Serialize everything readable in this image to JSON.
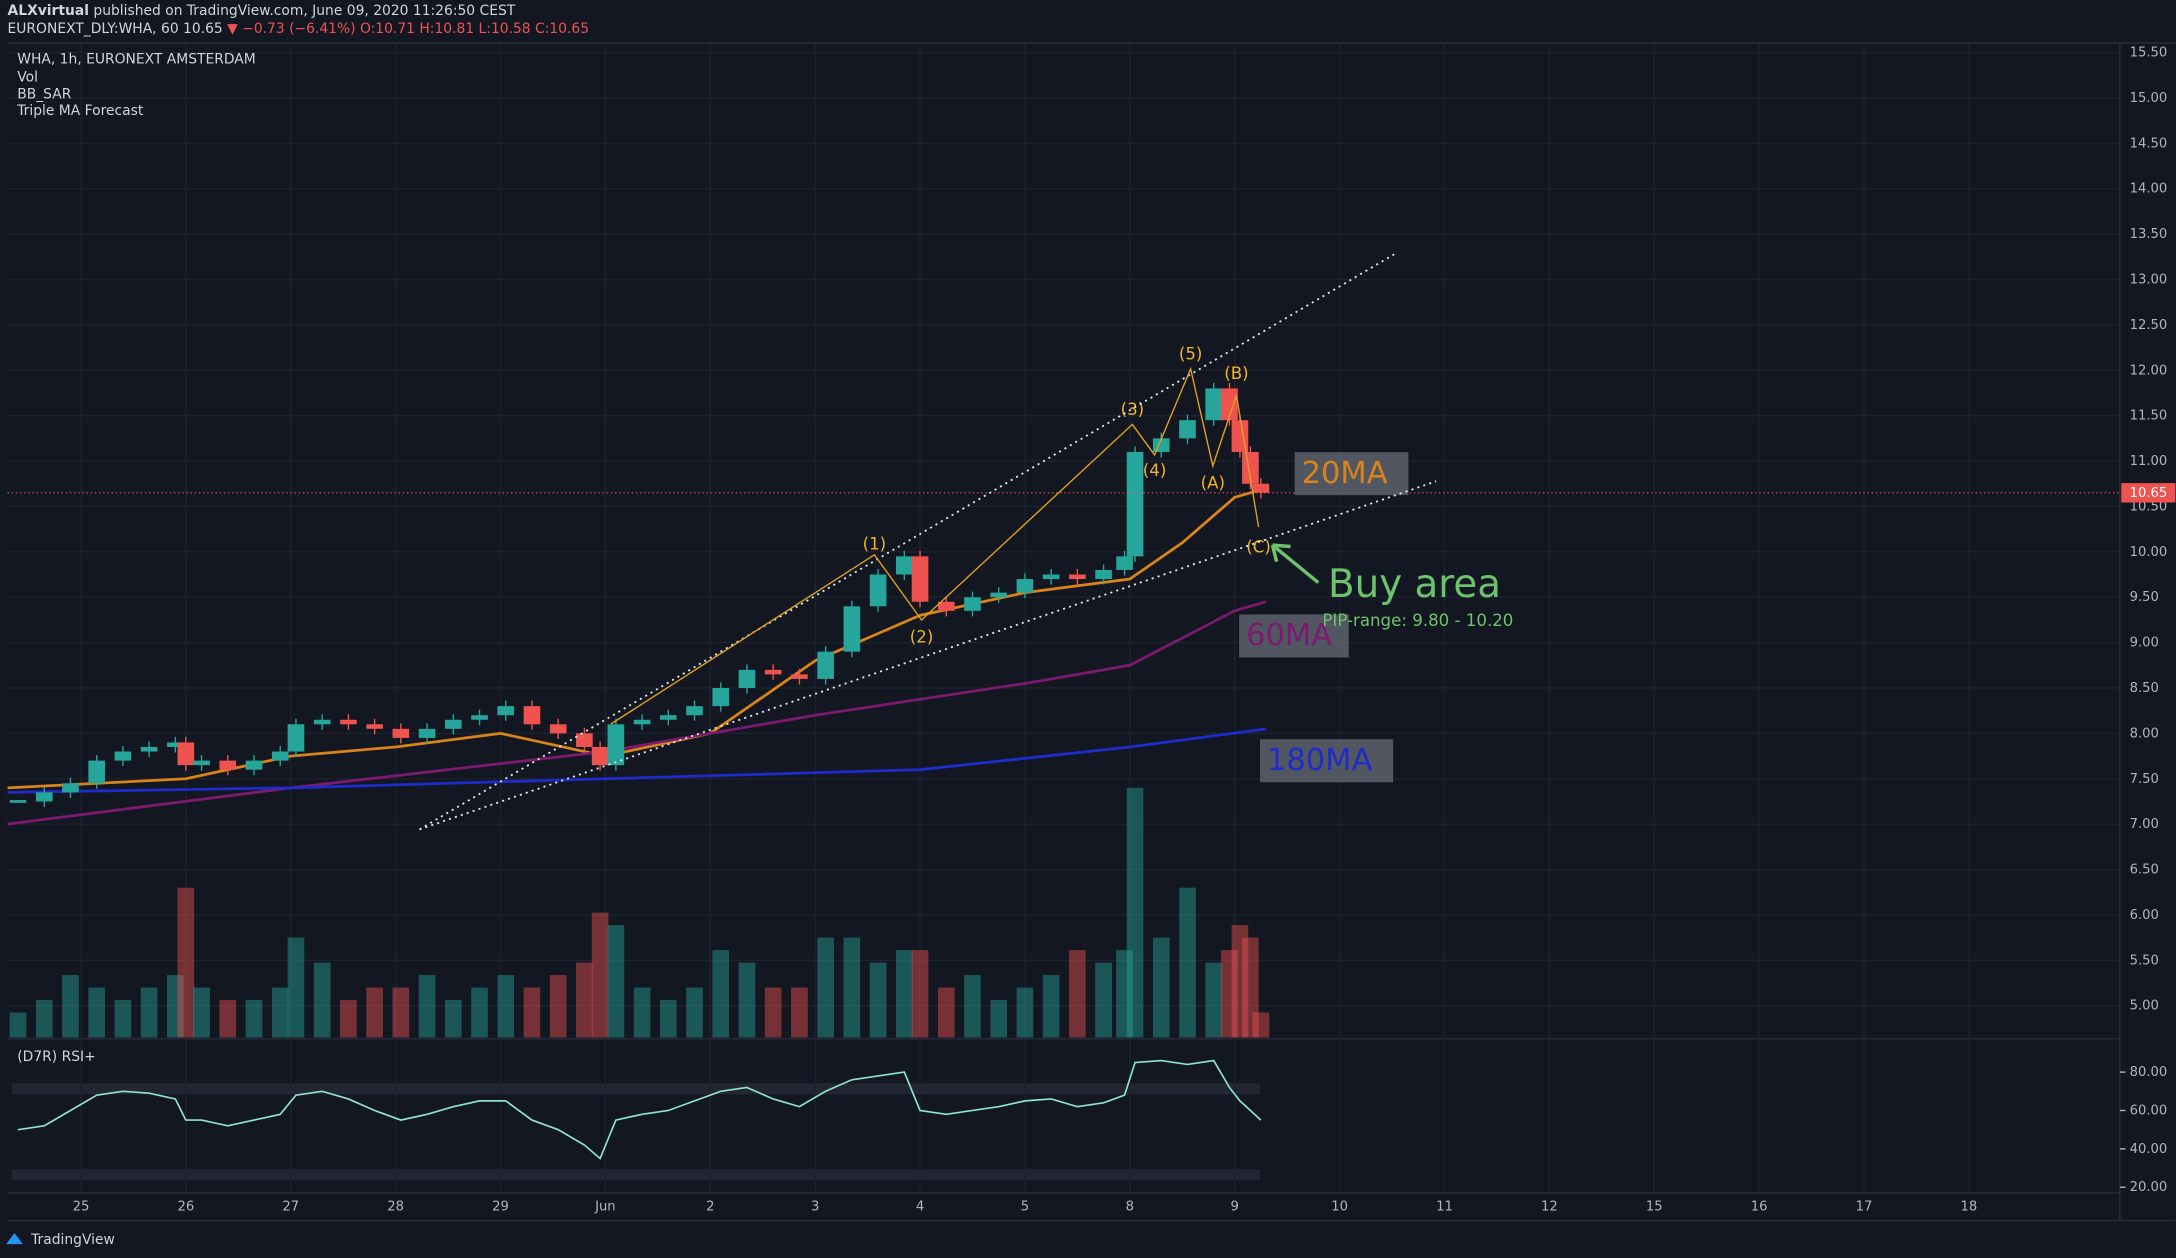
{
  "header": {
    "author": "ALXvirtual",
    "published": "published on TradingView.com, June 09, 2020 11:26:50 CEST",
    "symbol": "EURONEXT_DLY:WHA, 60",
    "last": "10.65",
    "change": "▼ −0.73 (−6.41%)",
    "ohlc": "O:10.71 H:10.81 L:10.58 C:10.65"
  },
  "footer": "TradingView",
  "annotations": {
    "waves": [
      "(1)",
      "(2)",
      "(3)",
      "(4)",
      "(5)",
      "(A)",
      "(B)",
      "(C)"
    ],
    "buy_area": "Buy area",
    "pip_range": "PIP-range: 9.80 - 10.20"
  },
  "chart_data": {
    "type": "candlestick",
    "legend": [
      "WHA, 1h, EURONEXT AMSTERDAM",
      "Vol",
      "BB_SAR",
      "Triple MA Forecast"
    ],
    "up_color": "#26a69a",
    "down_color": "#ef5350",
    "grid": true,
    "x": [
      -0.6,
      -0.35,
      -0.1,
      0.15,
      0.4,
      0.65,
      0.9,
      1.0,
      1.15,
      1.4,
      1.65,
      1.9,
      2.05,
      2.3,
      2.55,
      2.8,
      3.05,
      3.3,
      3.55,
      3.8,
      4.05,
      4.3,
      4.55,
      4.8,
      4.95,
      5.1,
      5.35,
      5.6,
      5.85,
      6.1,
      6.35,
      6.6,
      6.85,
      7.1,
      7.35,
      7.6,
      7.85,
      8.0,
      8.25,
      8.5,
      8.75,
      9.0,
      9.25,
      9.5,
      9.75,
      9.95,
      10.05,
      10.3,
      10.55,
      10.8,
      10.95,
      11.05,
      11.15,
      11.25
    ],
    "values": [
      7.25,
      7.35,
      7.45,
      7.7,
      7.8,
      7.85,
      7.9,
      7.65,
      7.7,
      7.6,
      7.7,
      7.8,
      8.1,
      8.15,
      8.1,
      8.05,
      7.95,
      8.05,
      8.15,
      8.2,
      8.3,
      8.1,
      8.0,
      7.85,
      7.65,
      8.1,
      8.15,
      8.2,
      8.3,
      8.5,
      8.7,
      8.65,
      8.6,
      8.9,
      9.4,
      9.75,
      9.95,
      9.45,
      9.35,
      9.5,
      9.55,
      9.7,
      9.75,
      9.7,
      9.8,
      9.95,
      11.1,
      11.25,
      11.45,
      11.8,
      11.45,
      11.1,
      10.75,
      10.65
    ],
    "volume": [
      10,
      15,
      25,
      20,
      15,
      20,
      25,
      60,
      20,
      15,
      15,
      20,
      40,
      30,
      15,
      20,
      20,
      25,
      15,
      20,
      25,
      20,
      25,
      30,
      50,
      45,
      20,
      15,
      20,
      35,
      30,
      20,
      20,
      40,
      40,
      30,
      35,
      35,
      20,
      25,
      15,
      20,
      25,
      35,
      30,
      35,
      100,
      40,
      60,
      30,
      35,
      45,
      40,
      10
    ],
    "last_price": 10.65,
    "xlim": [
      -0.7,
      19.44
    ],
    "xticks": [
      {
        "value": 0,
        "label": "25"
      },
      {
        "value": 1,
        "label": "26"
      },
      {
        "value": 2,
        "label": "27"
      },
      {
        "value": 3,
        "label": "28"
      },
      {
        "value": 4,
        "label": "29"
      },
      {
        "value": 5,
        "label": "Jun"
      },
      {
        "value": 6,
        "label": "2"
      },
      {
        "value": 7,
        "label": "3"
      },
      {
        "value": 8,
        "label": "4"
      },
      {
        "value": 9,
        "label": "5"
      },
      {
        "value": 10,
        "label": "8"
      },
      {
        "value": 11,
        "label": "9"
      },
      {
        "value": 12,
        "label": "10"
      },
      {
        "value": 13,
        "label": "11"
      },
      {
        "value": 14,
        "label": "12"
      },
      {
        "value": 15,
        "label": "15"
      },
      {
        "value": 16,
        "label": "16"
      },
      {
        "value": 17,
        "label": "17"
      },
      {
        "value": 18,
        "label": "18"
      }
    ],
    "ylim": [
      4.65,
      15.59
    ],
    "yticks": [
      {
        "value": 5,
        "label": "5.00"
      },
      {
        "value": 5.5,
        "label": "5.50"
      },
      {
        "value": 6,
        "label": "6.00"
      },
      {
        "value": 6.5,
        "label": "6.50"
      },
      {
        "value": 7,
        "label": "7.00"
      },
      {
        "value": 7.5,
        "label": "7.50"
      },
      {
        "value": 8,
        "label": "8.00"
      },
      {
        "value": 8.5,
        "label": "8.50"
      },
      {
        "value": 9,
        "label": "9.00"
      },
      {
        "value": 9.5,
        "label": "9.50"
      },
      {
        "value": 10,
        "label": "10.00"
      },
      {
        "value": 10.5,
        "label": "10.50"
      },
      {
        "value": 11,
        "label": "11.00"
      },
      {
        "value": 11.5,
        "label": "11.50"
      },
      {
        "value": 12,
        "label": "12.00"
      },
      {
        "value": 12.5,
        "label": "12.50"
      },
      {
        "value": 13,
        "label": "13.00"
      },
      {
        "value": 13.5,
        "label": "13.50"
      },
      {
        "value": 14,
        "label": "14.00"
      },
      {
        "value": 14.5,
        "label": "14.50"
      },
      {
        "value": 15,
        "label": "15.00"
      },
      {
        "value": 15.5,
        "label": "15.50"
      }
    ],
    "series": [
      {
        "name": "20MA",
        "color": "#d9841a",
        "x": [
          -0.7,
          1,
          2,
          3,
          4,
          5,
          6,
          7,
          8,
          9,
          10,
          10.5,
          11,
          11.3
        ],
        "values": [
          7.4,
          7.5,
          7.75,
          7.85,
          8.0,
          7.75,
          8.0,
          8.8,
          9.3,
          9.55,
          9.7,
          10.1,
          10.6,
          10.7
        ]
      },
      {
        "name": "60MA",
        "color": "#7b1a6e",
        "x": [
          -0.7,
          2,
          5,
          7,
          9,
          10,
          11,
          11.3
        ],
        "values": [
          7.0,
          7.4,
          7.8,
          8.2,
          8.55,
          8.75,
          9.35,
          9.45
        ]
      },
      {
        "name": "180MA",
        "color": "#1e2ccc",
        "x": [
          -0.7,
          2,
          5,
          8,
          10,
          11.3
        ],
        "values": [
          7.35,
          7.4,
          7.5,
          7.6,
          7.85,
          8.05
        ]
      }
    ],
    "rsi": {
      "title": "(D7R) RSI+",
      "color": "#8fe3cf",
      "values": [
        50,
        52,
        60,
        68,
        70,
        69,
        66,
        55,
        55,
        52,
        55,
        58,
        68,
        70,
        66,
        60,
        55,
        58,
        62,
        65,
        65,
        55,
        50,
        42,
        35,
        55,
        58,
        60,
        65,
        70,
        72,
        66,
        62,
        70,
        76,
        78,
        80,
        60,
        58,
        60,
        62,
        65,
        66,
        62,
        64,
        68,
        85,
        86,
        84,
        86,
        72,
        65,
        60,
        55
      ],
      "ylim": [
        17.1,
        96.6
      ],
      "yticks": [
        {
          "value": 20,
          "label": "20.00"
        },
        {
          "value": 40,
          "label": "40.00"
        },
        {
          "value": 60,
          "label": "60.00"
        },
        {
          "value": 80,
          "label": "80.00"
        }
      ]
    }
  }
}
